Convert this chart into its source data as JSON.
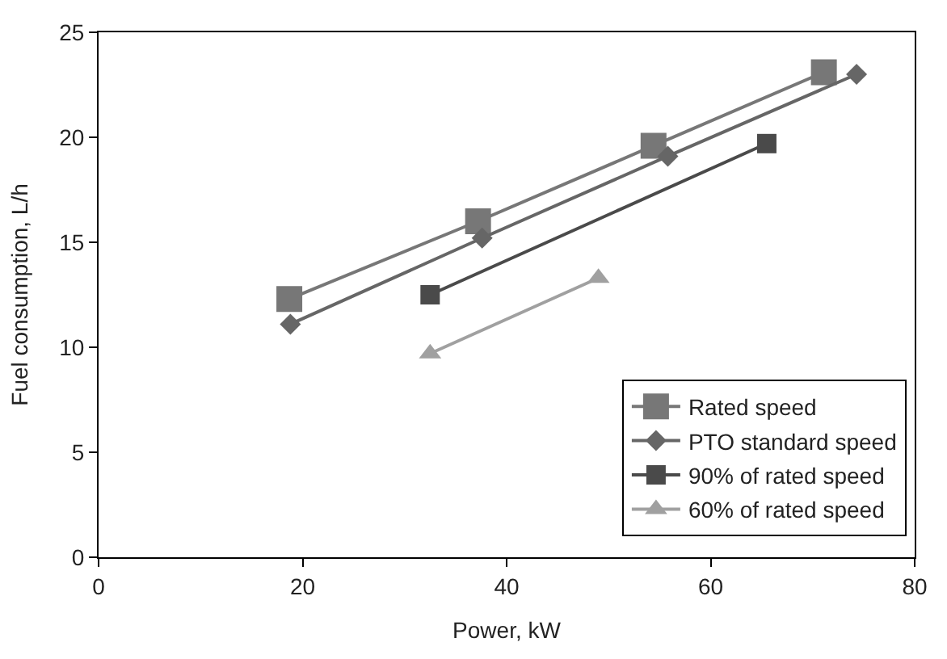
{
  "chart_data": {
    "type": "line",
    "xlabel": "Power, kW",
    "ylabel": "Fuel consumption, L/h",
    "xlim": [
      0,
      80
    ],
    "xticks": [
      0,
      20,
      40,
      60,
      80
    ],
    "ylim": [
      0,
      25
    ],
    "yticks": [
      0,
      5,
      10,
      15,
      20,
      25
    ],
    "legend": "bottom right",
    "series": [
      {
        "name": "Rated speed",
        "color": "#777777",
        "marker": "square",
        "x": [
          18.7,
          37.2,
          54.4,
          71.1
        ],
        "values": [
          12.3,
          16.0,
          19.6,
          23.1
        ]
      },
      {
        "name": "PTO standard speed",
        "color": "#666666",
        "marker": "diamond",
        "x": [
          18.8,
          37.6,
          55.8,
          74.3
        ],
        "values": [
          11.1,
          15.2,
          19.1,
          23.0
        ]
      },
      {
        "name": "90% of rated speed",
        "color": "#4a4a4a",
        "marker": "square",
        "x": [
          32.5,
          65.5
        ],
        "values": [
          12.5,
          19.7
        ]
      },
      {
        "name": "60% of rated speed",
        "color": "#a0a0a0",
        "marker": "triangle",
        "x": [
          32.5,
          49.0
        ],
        "values": [
          9.7,
          13.3
        ]
      }
    ]
  }
}
